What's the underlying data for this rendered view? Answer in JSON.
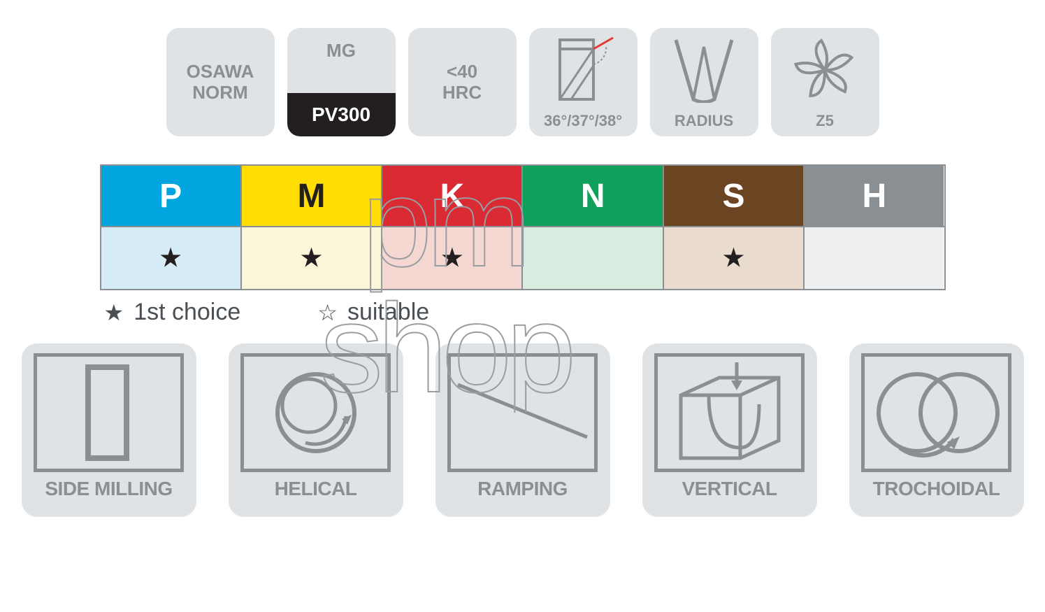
{
  "spec_cards": [
    {
      "type": "text2",
      "line1": "OSAWA",
      "line2": "NORM"
    },
    {
      "type": "mg",
      "top": "MG",
      "pv": "PV300"
    },
    {
      "type": "text2",
      "line1": "<40",
      "line2": "HRC"
    },
    {
      "type": "angles",
      "caption": "36°/37°/38°"
    },
    {
      "type": "radius",
      "caption": "RADIUS"
    },
    {
      "type": "z5",
      "caption": "Z5"
    }
  ],
  "materials": {
    "border_color": "#8a8f94",
    "columns": [
      {
        "code": "P",
        "header_bg": "#00a4de",
        "header_fg": "#ffffff",
        "body_bg": "#d6ecf7",
        "star": "filled"
      },
      {
        "code": "M",
        "header_bg": "#ffdd05",
        "header_fg": "#231f20",
        "body_bg": "#fbf5d9",
        "star": "filled"
      },
      {
        "code": "K",
        "header_bg": "#da2a33",
        "header_fg": "#ffffff",
        "body_bg": "#f5d7d1",
        "star": "filled"
      },
      {
        "code": "N",
        "header_bg": "#0fa05b",
        "header_fg": "#ffffff",
        "body_bg": "#d8ece0",
        "star": "none"
      },
      {
        "code": "S",
        "header_bg": "#6b4521",
        "header_fg": "#ffffff",
        "body_bg": "#e9dbcd",
        "star": "filled"
      },
      {
        "code": "H",
        "header_bg": "#8a8f94",
        "header_fg": "#ffffff",
        "body_bg": "#edeff0",
        "star": "none"
      }
    ]
  },
  "legend": {
    "first_choice": {
      "symbol": "★",
      "label": "1st choice"
    },
    "suitable": {
      "symbol": "☆",
      "label": "suitable"
    }
  },
  "operations": [
    {
      "key": "side",
      "label": "SIDE MILLING"
    },
    {
      "key": "helical",
      "label": "HELICAL"
    },
    {
      "key": "ramping",
      "label": "RAMPING"
    },
    {
      "key": "vertical",
      "label": "VERTICAL"
    },
    {
      "key": "trochoidal",
      "label": "TROCHOIDAL"
    }
  ],
  "watermark": {
    "line1": "pm",
    "line2": "shop"
  },
  "colors": {
    "card_bg": "#dfe3e6",
    "card_fg": "#8a8f94",
    "black": "#231f20",
    "white": "#ffffff",
    "red_accent": "#e53935"
  }
}
